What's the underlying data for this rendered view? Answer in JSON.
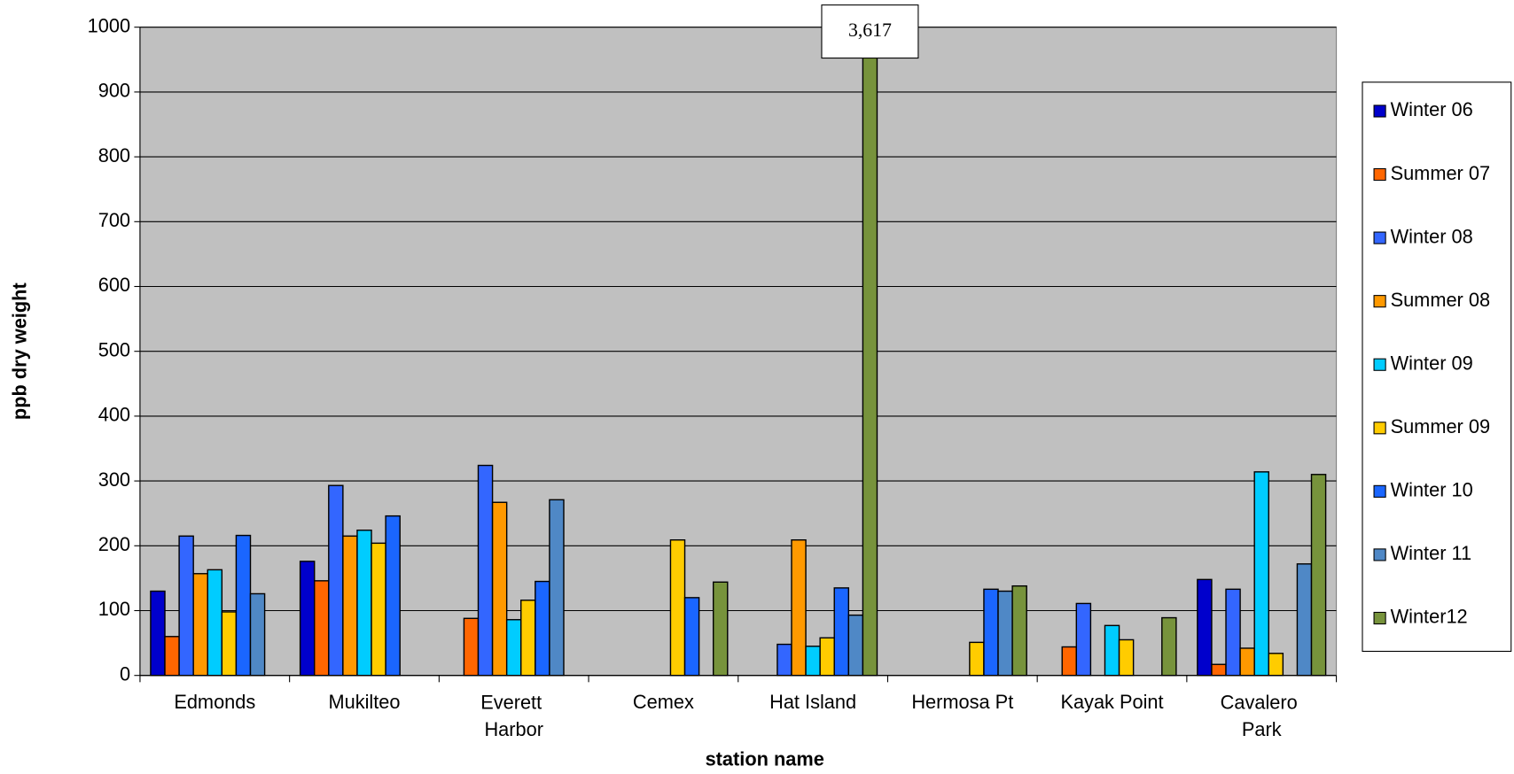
{
  "chart_data": {
    "type": "bar",
    "xlabel": "station name",
    "ylabel": "ppb dry weight",
    "categories": [
      "Edmonds",
      "Mukilteo",
      "Everett\nHarbor",
      "Cemex",
      "Hat Island",
      "Hermosa Pt",
      "Kayak Point",
      "Cavalero\nPark"
    ],
    "ylim": [
      0,
      1000
    ],
    "yticks": [
      0,
      100,
      200,
      300,
      400,
      500,
      600,
      700,
      800,
      900,
      1000
    ],
    "grid": true,
    "legend": "right",
    "series": [
      {
        "name": "Winter 06",
        "color": "#0000cc",
        "values": [
          130,
          176,
          null,
          null,
          null,
          null,
          null,
          148
        ]
      },
      {
        "name": "Summer 07",
        "color": "#ff6600",
        "values": [
          60,
          146,
          88,
          null,
          null,
          null,
          44,
          17
        ]
      },
      {
        "name": "Winter 08",
        "color": "#3366ff",
        "values": [
          215,
          293,
          324,
          null,
          48,
          null,
          111,
          133
        ]
      },
      {
        "name": "Summer 08",
        "color": "#ff9900",
        "values": [
          157,
          215,
          267,
          null,
          209,
          null,
          null,
          42
        ]
      },
      {
        "name": "Winter 09",
        "color": "#00ccff",
        "values": [
          163,
          224,
          86,
          null,
          45,
          null,
          77,
          314
        ]
      },
      {
        "name": "Summer 09",
        "color": "#ffcc00",
        "values": [
          98,
          204,
          116,
          209,
          58,
          51,
          55,
          34
        ]
      },
      {
        "name": "Winter 10",
        "color": "#1a66ff",
        "values": [
          216,
          246,
          145,
          120,
          135,
          133,
          null,
          null
        ]
      },
      {
        "name": "Winter 11",
        "color": "#4f88c6",
        "values": [
          126,
          null,
          271,
          null,
          93,
          130,
          null,
          172
        ]
      },
      {
        "name": "Winter12",
        "color": "#77933c",
        "values": [
          null,
          null,
          null,
          144,
          3617,
          138,
          89,
          310
        ],
        "value_labels": [
          null,
          null,
          null,
          null,
          "3,617",
          null,
          null,
          null
        ]
      }
    ]
  }
}
